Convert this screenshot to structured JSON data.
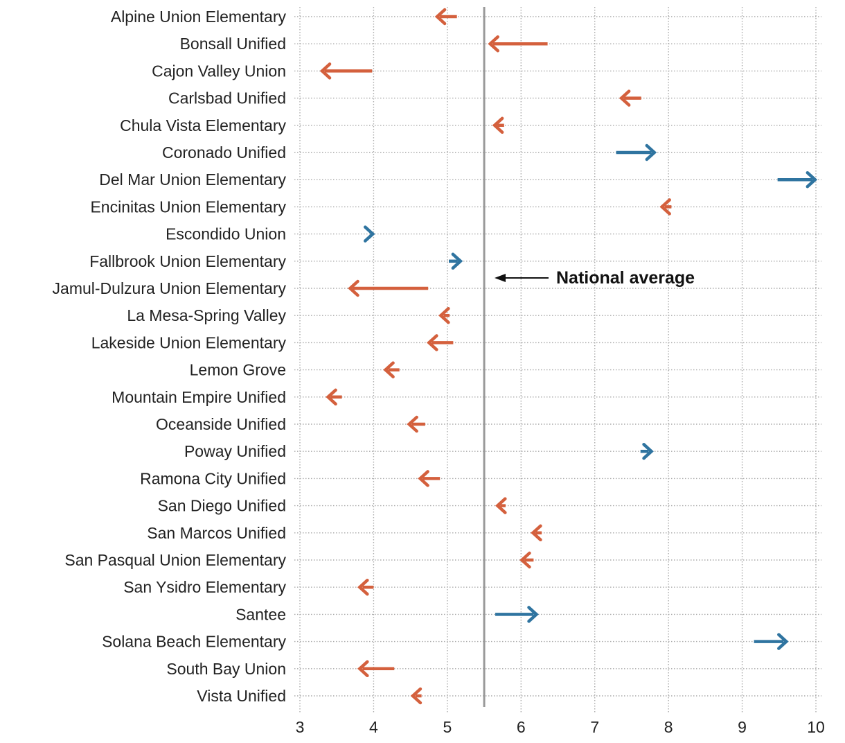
{
  "chart_data": {
    "type": "arrow",
    "xlim": [
      3,
      10
    ],
    "x_ticks": [
      "3",
      "4",
      "5",
      "6",
      "7",
      "8",
      "9",
      "10"
    ],
    "grid": true,
    "reference_line": {
      "value": 5.5,
      "label": "National average"
    },
    "colors": {
      "decrease": "#d4603d",
      "increase": "#2f74a0",
      "reference": "#999999",
      "grid": "#aaaaaa"
    },
    "categories": [
      "Alpine Union Elementary",
      "Bonsall Unified",
      "Cajon Valley Union",
      "Carlsbad Unified",
      "Chula Vista Elementary",
      "Coronado Unified",
      "Del Mar Union Elementary",
      "Encinitas Union Elementary",
      "Escondido Union",
      "Fallbrook Union Elementary",
      "Jamul-Dulzura Union Elementary",
      "La Mesa-Spring Valley",
      "Lakeside Union Elementary",
      "Lemon Grove",
      "Mountain Empire Unified",
      "Oceanside Unified",
      "Poway Unified",
      "Ramona City Unified",
      "San Diego Unified",
      "San Marcos Unified",
      "San Pasqual Union Elementary",
      "San Ysidro Elementary",
      "Santee",
      "Solana Beach Elementary",
      "South Bay Union",
      "Vista Unified"
    ],
    "start": [
      5.13,
      6.36,
      3.98,
      7.63,
      5.77,
      7.29,
      9.48,
      8.04,
      3.97,
      5.02,
      4.74,
      5.03,
      5.08,
      4.35,
      3.57,
      4.7,
      7.62,
      4.9,
      5.79,
      6.28,
      6.17,
      4.0,
      5.65,
      9.16,
      4.28,
      4.65
    ],
    "end": [
      4.88,
      5.6,
      3.32,
      7.38,
      5.66,
      7.79,
      9.97,
      7.93,
      3.97,
      5.16,
      3.7,
      4.93,
      4.77,
      4.18,
      3.4,
      4.5,
      7.75,
      4.65,
      5.7,
      6.18,
      6.03,
      3.83,
      6.19,
      9.58,
      3.83,
      4.55
    ]
  }
}
